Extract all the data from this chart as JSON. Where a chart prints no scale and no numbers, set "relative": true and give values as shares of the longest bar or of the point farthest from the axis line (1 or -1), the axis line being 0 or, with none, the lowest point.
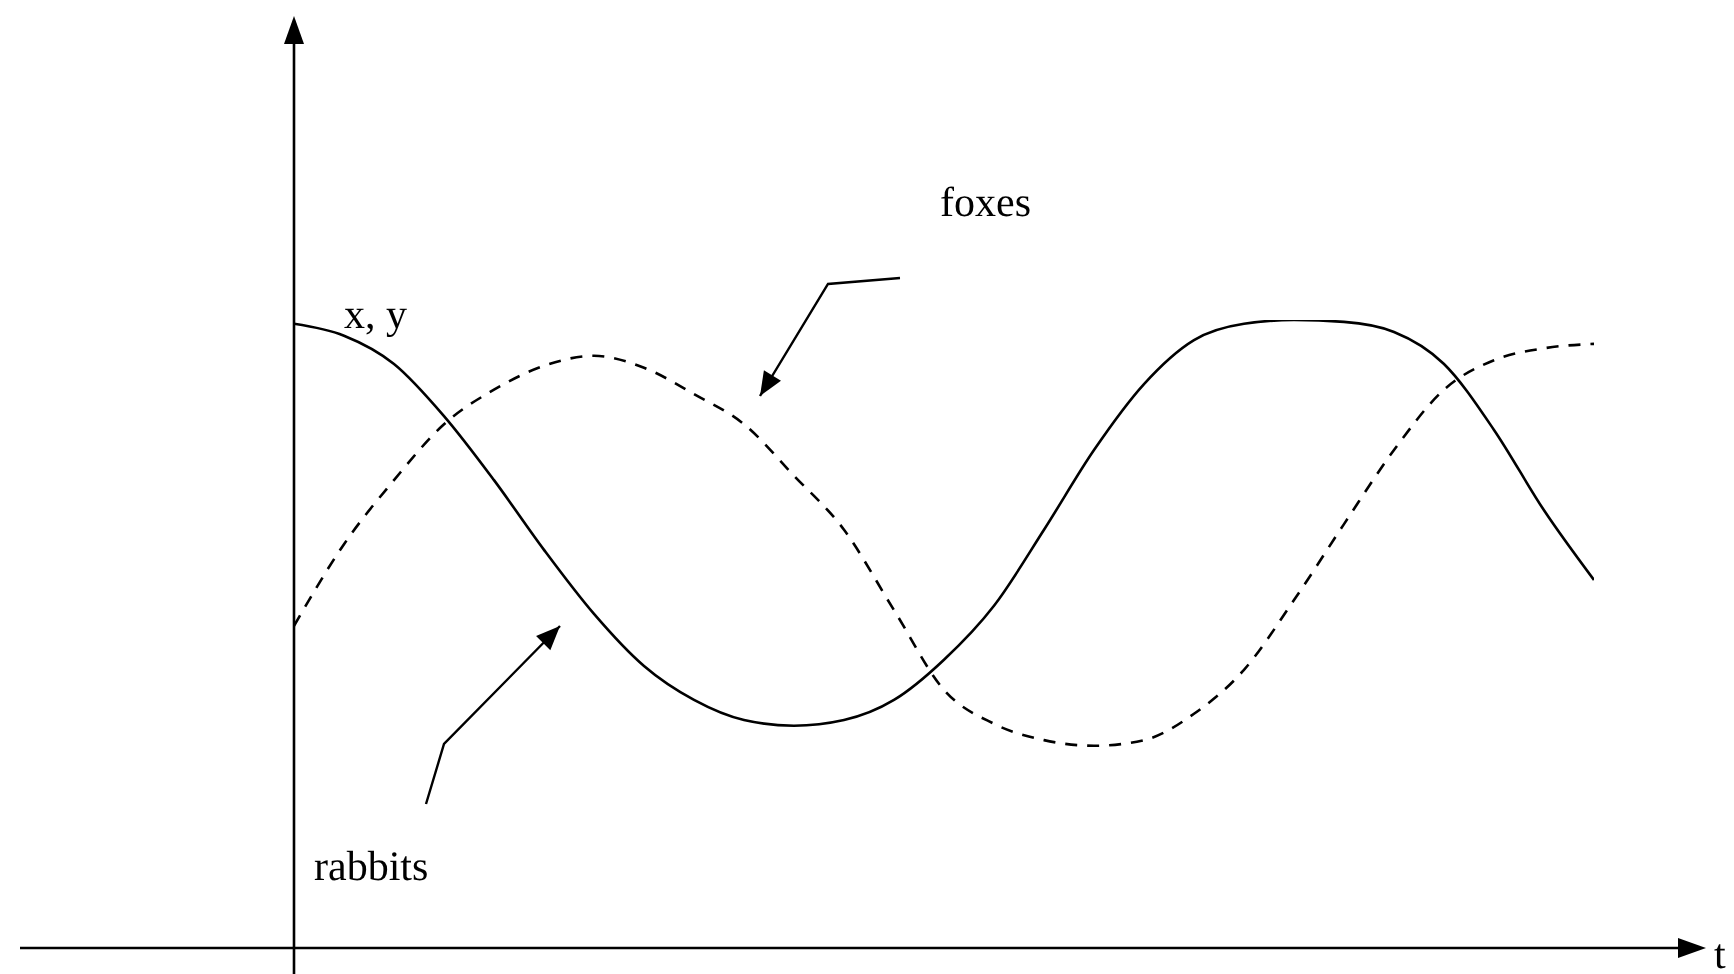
{
  "chart_data": {
    "type": "line",
    "relative": true,
    "xlabel": "t",
    "ylabel": "x, y",
    "annotations": [
      "foxes",
      "rabbits"
    ],
    "categories": [
      null,
      null,
      null,
      null,
      null,
      null,
      null,
      null,
      null,
      null,
      null,
      null,
      null,
      null,
      null,
      null,
      null,
      null,
      null,
      null,
      null,
      null,
      null,
      null,
      null,
      null,
      null
    ],
    "legend": false,
    "grid": false,
    "marker": "none",
    "tick_labels": false,
    "series": [
      {
        "color": "#000000",
        "line_style": "solid",
        "values": [
          0.994,
          0.975,
          0.93,
          0.847,
          0.745,
          0.634,
          0.532,
          0.449,
          0.395,
          0.363,
          0.354,
          0.363,
          0.395,
          0.459,
          0.545,
          0.666,
          0.793,
          0.898,
          0.968,
          0.994,
          1,
          0.997,
          0.981,
          0.93,
          0.825,
          0.697,
          0.586
        ]
      },
      {
        "color": "#000000",
        "line_style": "dashed",
        "values": [
          0.513,
          0.643,
          0.745,
          0.834,
          0.889,
          0.927,
          0.943,
          0.924,
          0.882,
          0.834,
          0.752,
          0.666,
          0.538,
          0.411,
          0.357,
          0.331,
          0.322,
          0.331,
          0.373,
          0.443,
          0.554,
          0.675,
          0.793,
          0.889,
          0.936,
          0.955,
          0.962
        ]
      }
    ]
  }
}
